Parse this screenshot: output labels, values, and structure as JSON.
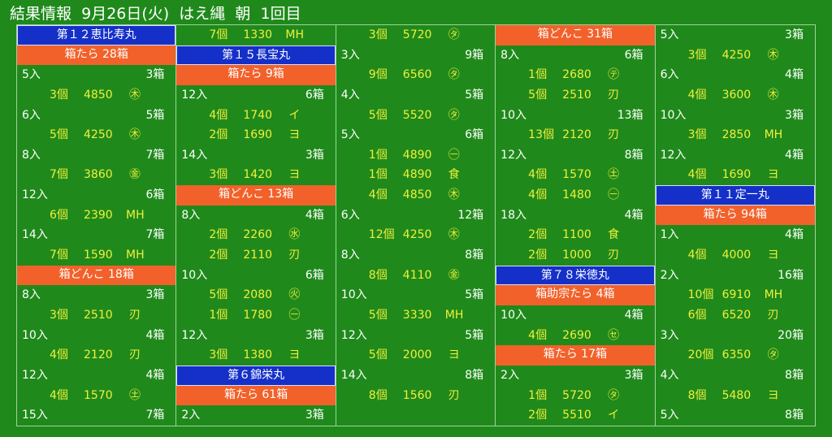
{
  "header": {
    "title": "結果情報",
    "date": "9月26日(火)",
    "place": "はえ縄",
    "session": "朝",
    "round": "1回目"
  },
  "columns": [
    [
      {
        "type": "ship",
        "text": "第１２恵比寿丸"
      },
      {
        "type": "box",
        "text": "箱たら 28箱"
      },
      {
        "type": "entry",
        "irisu": "5入",
        "hako": "3箱"
      },
      {
        "type": "sale",
        "ko": "3個",
        "price": "4850",
        "buyer": "㊍"
      },
      {
        "type": "entry",
        "irisu": "6入",
        "hako": "5箱"
      },
      {
        "type": "sale",
        "ko": "5個",
        "price": "4250",
        "buyer": "㊍"
      },
      {
        "type": "entry",
        "irisu": "8入",
        "hako": "7箱"
      },
      {
        "type": "sale",
        "ko": "7個",
        "price": "3860",
        "buyer": "㊎"
      },
      {
        "type": "entry",
        "irisu": "12入",
        "hako": "6箱"
      },
      {
        "type": "sale",
        "ko": "6個",
        "price": "2390",
        "buyer": "MH"
      },
      {
        "type": "entry",
        "irisu": "14入",
        "hako": "7箱"
      },
      {
        "type": "sale",
        "ko": "7個",
        "price": "1590",
        "buyer": "MH"
      },
      {
        "type": "box",
        "text": "箱どんこ 18箱"
      },
      {
        "type": "entry",
        "irisu": "8入",
        "hako": "3箱"
      },
      {
        "type": "sale",
        "ko": "3個",
        "price": "2510",
        "buyer": "刃"
      },
      {
        "type": "entry",
        "irisu": "10入",
        "hako": "4箱"
      },
      {
        "type": "sale",
        "ko": "4個",
        "price": "2120",
        "buyer": "刃"
      },
      {
        "type": "entry",
        "irisu": "12入",
        "hako": "4箱"
      },
      {
        "type": "sale",
        "ko": "4個",
        "price": "1570",
        "buyer": "㊏"
      },
      {
        "type": "entry",
        "irisu": "15入",
        "hako": "7箱"
      }
    ],
    [
      {
        "type": "sale",
        "ko": "7個",
        "price": "1330",
        "buyer": "MH"
      },
      {
        "type": "ship",
        "text": "第１５長宝丸"
      },
      {
        "type": "box",
        "text": "箱たら 9箱"
      },
      {
        "type": "entry",
        "irisu": "12入",
        "hako": "6箱"
      },
      {
        "type": "sale",
        "ko": "4個",
        "price": "1740",
        "buyer": "イ"
      },
      {
        "type": "sale",
        "ko": "2個",
        "price": "1690",
        "buyer": "ヨ"
      },
      {
        "type": "entry",
        "irisu": "14入",
        "hako": "3箱"
      },
      {
        "type": "sale",
        "ko": "3個",
        "price": "1420",
        "buyer": "ヨ"
      },
      {
        "type": "box",
        "text": "箱どんこ 13箱"
      },
      {
        "type": "entry",
        "irisu": "8入",
        "hako": "4箱"
      },
      {
        "type": "sale",
        "ko": "2個",
        "price": "2260",
        "buyer": "㊌"
      },
      {
        "type": "sale",
        "ko": "2個",
        "price": "2110",
        "buyer": "刃"
      },
      {
        "type": "entry",
        "irisu": "10入",
        "hako": "6箱"
      },
      {
        "type": "sale",
        "ko": "5個",
        "price": "2080",
        "buyer": "㊋"
      },
      {
        "type": "sale",
        "ko": "1個",
        "price": "1780",
        "buyer": "㊀"
      },
      {
        "type": "entry",
        "irisu": "12入",
        "hako": "3箱"
      },
      {
        "type": "sale",
        "ko": "3個",
        "price": "1380",
        "buyer": "ヨ"
      },
      {
        "type": "ship",
        "text": "第６錦栄丸"
      },
      {
        "type": "box",
        "text": "箱たら 61箱"
      },
      {
        "type": "entry",
        "irisu": "2入",
        "hako": "3箱"
      }
    ],
    [
      {
        "type": "sale",
        "ko": "3個",
        "price": "5720",
        "buyer": "㋟"
      },
      {
        "type": "entry",
        "irisu": "3入",
        "hako": "9箱"
      },
      {
        "type": "sale",
        "ko": "9個",
        "price": "6560",
        "buyer": "㋟"
      },
      {
        "type": "entry",
        "irisu": "4入",
        "hako": "5箱"
      },
      {
        "type": "sale",
        "ko": "5個",
        "price": "5520",
        "buyer": "㋟"
      },
      {
        "type": "entry",
        "irisu": "5入",
        "hako": "6箱"
      },
      {
        "type": "sale",
        "ko": "1個",
        "price": "4890",
        "buyer": "㊀"
      },
      {
        "type": "sale",
        "ko": "1個",
        "price": "4890",
        "buyer": "食"
      },
      {
        "type": "sale",
        "ko": "4個",
        "price": "4850",
        "buyer": "㊍"
      },
      {
        "type": "entry",
        "irisu": "6入",
        "hako": "12箱"
      },
      {
        "type": "sale",
        "ko": "12個",
        "price": "4250",
        "buyer": "㊍"
      },
      {
        "type": "entry",
        "irisu": "8入",
        "hako": "8箱"
      },
      {
        "type": "sale",
        "ko": "8個",
        "price": "4110",
        "buyer": "㊎"
      },
      {
        "type": "entry",
        "irisu": "10入",
        "hako": "5箱"
      },
      {
        "type": "sale",
        "ko": "5個",
        "price": "3330",
        "buyer": "MH"
      },
      {
        "type": "entry",
        "irisu": "12入",
        "hako": "5箱"
      },
      {
        "type": "sale",
        "ko": "5個",
        "price": "2000",
        "buyer": "ヨ"
      },
      {
        "type": "entry",
        "irisu": "14入",
        "hako": "8箱"
      },
      {
        "type": "sale",
        "ko": "8個",
        "price": "1560",
        "buyer": "刃"
      },
      {
        "type": "blank"
      }
    ],
    [
      {
        "type": "box",
        "text": "箱どんこ 31箱"
      },
      {
        "type": "entry",
        "irisu": "8入",
        "hako": "6箱"
      },
      {
        "type": "sale",
        "ko": "1個",
        "price": "2680",
        "buyer": "㋢"
      },
      {
        "type": "sale",
        "ko": "5個",
        "price": "2510",
        "buyer": "刃"
      },
      {
        "type": "entry",
        "irisu": "10入",
        "hako": "13箱"
      },
      {
        "type": "sale",
        "ko": "13個",
        "price": "2120",
        "buyer": "刃"
      },
      {
        "type": "entry",
        "irisu": "12入",
        "hako": "8箱"
      },
      {
        "type": "sale",
        "ko": "4個",
        "price": "1570",
        "buyer": "㊏"
      },
      {
        "type": "sale",
        "ko": "4個",
        "price": "1480",
        "buyer": "㊀"
      },
      {
        "type": "entry",
        "irisu": "18入",
        "hako": "4箱"
      },
      {
        "type": "sale",
        "ko": "2個",
        "price": "1100",
        "buyer": "食"
      },
      {
        "type": "sale",
        "ko": "2個",
        "price": "1000",
        "buyer": "刃"
      },
      {
        "type": "ship",
        "text": "第７８栄徳丸"
      },
      {
        "type": "box",
        "text": "箱助宗たら 4箱"
      },
      {
        "type": "entry",
        "irisu": "10入",
        "hako": "4箱"
      },
      {
        "type": "sale",
        "ko": "4個",
        "price": "2690",
        "buyer": "㋝"
      },
      {
        "type": "box",
        "text": "箱たら 17箱"
      },
      {
        "type": "entry",
        "irisu": "2入",
        "hako": "3箱"
      },
      {
        "type": "sale",
        "ko": "1個",
        "price": "5720",
        "buyer": "㋟"
      },
      {
        "type": "sale",
        "ko": "2個",
        "price": "5510",
        "buyer": "イ"
      }
    ],
    [
      {
        "type": "entry",
        "irisu": "5入",
        "hako": "3箱"
      },
      {
        "type": "sale",
        "ko": "3個",
        "price": "4250",
        "buyer": "㊍"
      },
      {
        "type": "entry",
        "irisu": "6入",
        "hako": "4箱"
      },
      {
        "type": "sale",
        "ko": "4個",
        "price": "3600",
        "buyer": "㊍"
      },
      {
        "type": "entry",
        "irisu": "10入",
        "hako": "3箱"
      },
      {
        "type": "sale",
        "ko": "3個",
        "price": "2850",
        "buyer": "MH"
      },
      {
        "type": "entry",
        "irisu": "12入",
        "hako": "4箱"
      },
      {
        "type": "sale",
        "ko": "4個",
        "price": "1690",
        "buyer": "ヨ"
      },
      {
        "type": "ship",
        "text": "第１１定一丸"
      },
      {
        "type": "box",
        "text": "箱たら 94箱"
      },
      {
        "type": "entry",
        "irisu": "1入",
        "hako": "4箱"
      },
      {
        "type": "sale",
        "ko": "4個",
        "price": "4000",
        "buyer": "ヨ"
      },
      {
        "type": "entry",
        "irisu": "2入",
        "hako": "16箱"
      },
      {
        "type": "sale",
        "ko": "10個",
        "price": "6910",
        "buyer": "MH"
      },
      {
        "type": "sale",
        "ko": "6個",
        "price": "6520",
        "buyer": "刃"
      },
      {
        "type": "entry",
        "irisu": "3入",
        "hako": "20箱"
      },
      {
        "type": "sale",
        "ko": "20個",
        "price": "6350",
        "buyer": "㋟"
      },
      {
        "type": "entry",
        "irisu": "4入",
        "hako": "8箱"
      },
      {
        "type": "sale",
        "ko": "8個",
        "price": "5480",
        "buyer": "ヨ"
      },
      {
        "type": "entry",
        "irisu": "5入",
        "hako": "8箱"
      }
    ]
  ]
}
